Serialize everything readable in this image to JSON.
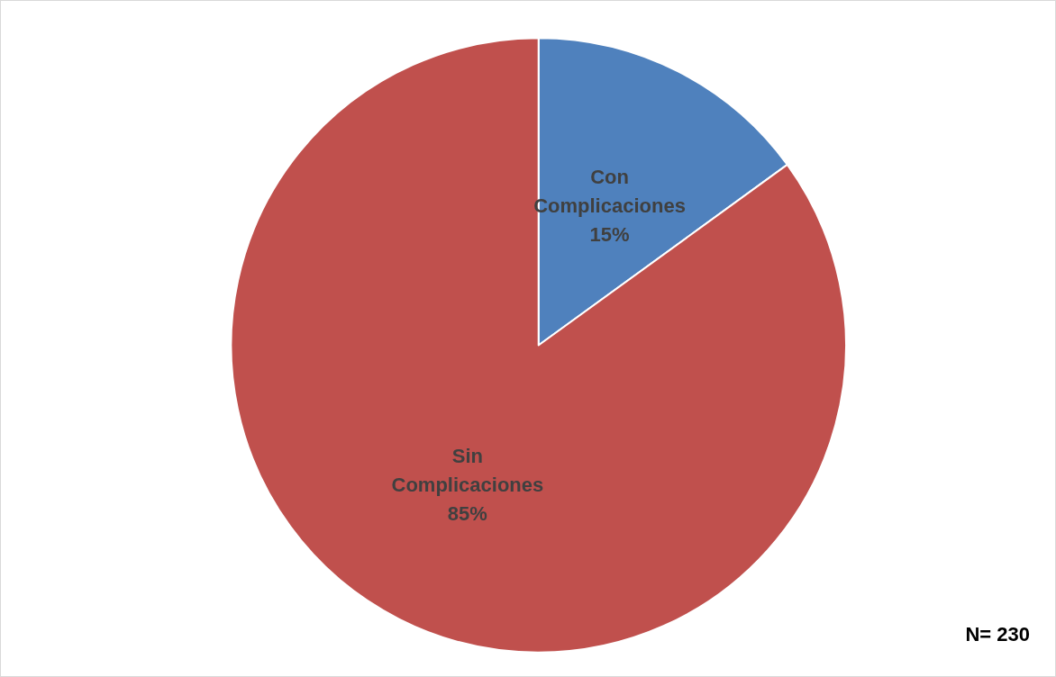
{
  "chart_data": {
    "type": "pie",
    "categories": [
      "Con Complicaciones",
      "Sin Complicaciones"
    ],
    "values": [
      15,
      85
    ],
    "colors": [
      "#4f81bd",
      "#c0504d"
    ],
    "value_labels": [
      "15%",
      "85%"
    ],
    "legend": false,
    "annotations": [
      "N= 230"
    ]
  }
}
